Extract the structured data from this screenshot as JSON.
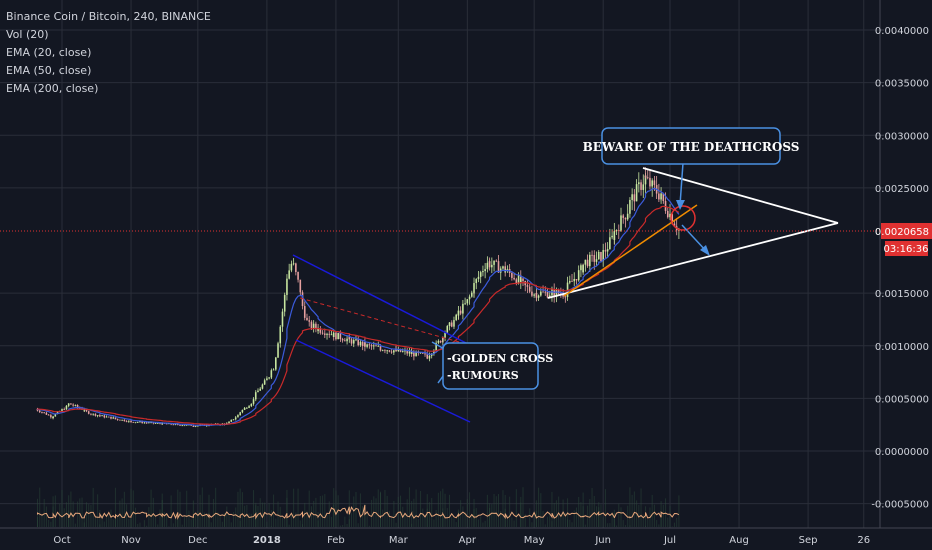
{
  "chart_data": {
    "type": "candlestick",
    "title": "Binance Coin / Bitcoin, 240, BINANCE",
    "indicators": [
      "Vol (20)",
      "EMA (20, close)",
      "EMA (50, close)",
      "EMA (200, close)"
    ],
    "y_ticks": [
      0.004,
      0.0035,
      0.003,
      0.0025,
      0.0015,
      0.001,
      0.0005,
      0.0,
      -0.0005
    ],
    "y_tick_labels": [
      "0.0040000",
      "0.0035000",
      "0.0030000",
      "0.0025000",
      "0.0015000",
      "0.0010000",
      "0.0005000",
      "0.0000000",
      "-0.0005000"
    ],
    "ylim": [
      -0.00075,
      0.0042
    ],
    "x_labels": [
      "Oct",
      "Nov",
      "Dec",
      "2018",
      "Feb",
      "Mar",
      "Apr",
      "May",
      "Jun",
      "Jul",
      "Aug",
      "Sep",
      "26"
    ],
    "current_price": 0.0020658,
    "current_price_label": "0.0020658",
    "countdown_label": "03:16:36",
    "price_series": [
      [
        "2017-09-20",
        0.0004
      ],
      [
        "2017-09-27",
        0.00032
      ],
      [
        "2017-10-05",
        0.00045
      ],
      [
        "2017-10-15",
        0.00035
      ],
      [
        "2017-11-01",
        0.00028
      ],
      [
        "2017-11-15",
        0.00026
      ],
      [
        "2017-12-01",
        0.00024
      ],
      [
        "2017-12-15",
        0.00026
      ],
      [
        "2017-12-25",
        0.00045
      ],
      [
        "2018-01-05",
        0.0008
      ],
      [
        "2018-01-10",
        0.0016
      ],
      [
        "2018-01-13",
        0.0018
      ],
      [
        "2018-01-20",
        0.0012
      ],
      [
        "2018-02-01",
        0.0011
      ],
      [
        "2018-02-15",
        0.001
      ],
      [
        "2018-03-01",
        0.00095
      ],
      [
        "2018-03-15",
        0.0009
      ],
      [
        "2018-03-25",
        0.0012
      ],
      [
        "2018-04-01",
        0.0014
      ],
      [
        "2018-04-10",
        0.0018
      ],
      [
        "2018-04-20",
        0.0017
      ],
      [
        "2018-05-01",
        0.0015
      ],
      [
        "2018-05-15",
        0.0015
      ],
      [
        "2018-05-25",
        0.0018
      ],
      [
        "2018-06-01",
        0.00185
      ],
      [
        "2018-06-10",
        0.0022
      ],
      [
        "2018-06-20",
        0.0026
      ],
      [
        "2018-06-28",
        0.0024
      ],
      [
        "2018-07-05",
        0.0021
      ]
    ],
    "annotations": [
      {
        "text": "BEWARE OF THE DEATHCROSS"
      },
      {
        "text": "-GOLDEN CROSS"
      },
      {
        "text": "-RUMOURS"
      }
    ],
    "colors": {
      "background": "#131722",
      "grid": "#2a2e39",
      "ema20": "#3b5bdb",
      "ema50": "#c92a2a",
      "volume_line": "#e8a87c",
      "channel": "#1a1ad9",
      "triangle": "#ffffff",
      "price_line": "#e03131",
      "callout_border": "#4a90e2"
    }
  }
}
